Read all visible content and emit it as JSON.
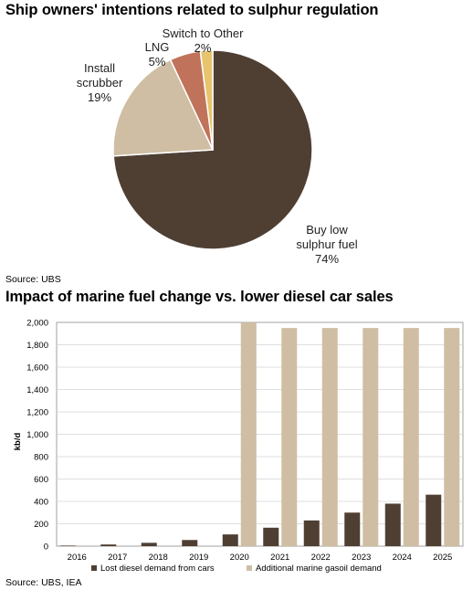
{
  "chart_data": [
    {
      "type": "pie",
      "title": "Ship owners' intentions related to sulphur regulation",
      "source": "Source: UBS",
      "slices": [
        {
          "label_lines": [
            "Buy low",
            "sulphur fuel"
          ],
          "pct_label": "74%",
          "value": 74,
          "color": "#4f3f33"
        },
        {
          "label_lines": [
            "Install",
            "scrubber"
          ],
          "pct_label": "19%",
          "value": 19,
          "color": "#cfbea3"
        },
        {
          "label_lines": [
            "LNG"
          ],
          "pct_label": "5%",
          "value": 5,
          "color": "#c0735a"
        },
        {
          "label_lines": [
            "Switch to Other"
          ],
          "pct_label": "2%",
          "value": 2,
          "color": "#e8c46e"
        }
      ]
    },
    {
      "type": "bar",
      "title": "Impact of marine fuel change vs. lower diesel car sales",
      "source": "Source: UBS, IEA",
      "ylabel": "kb/d",
      "ylim": [
        0,
        2000
      ],
      "yticks": [
        "0",
        "200",
        "400",
        "600",
        "800",
        "1,000",
        "1,200",
        "1,400",
        "1,600",
        "1,800",
        "2,000"
      ],
      "ytick_values": [
        0,
        200,
        400,
        600,
        800,
        1000,
        1200,
        1400,
        1600,
        1800,
        2000
      ],
      "categories": [
        "2016",
        "2017",
        "2018",
        "2019",
        "2020",
        "2021",
        "2022",
        "2023",
        "2024",
        "2025"
      ],
      "series": [
        {
          "name": "Lost diesel demand from cars",
          "color": "#4f3f33",
          "values": [
            5,
            15,
            30,
            55,
            105,
            165,
            230,
            300,
            380,
            460
          ]
        },
        {
          "name": "Additional marine gasoil demand",
          "color": "#cfbea3",
          "values": [
            0,
            0,
            0,
            0,
            2000,
            1950,
            1950,
            1950,
            1950,
            1950
          ]
        }
      ],
      "grid": true,
      "legend": "bottom"
    }
  ]
}
